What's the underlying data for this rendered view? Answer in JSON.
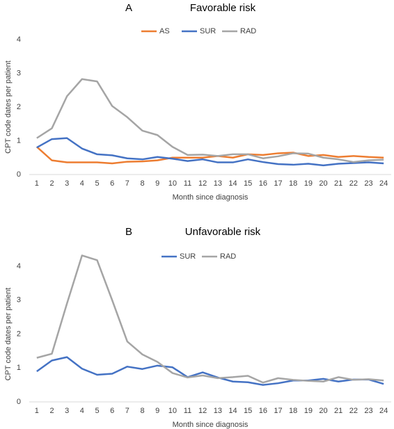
{
  "chart_data": [
    {
      "type": "line",
      "panel": "A",
      "title": "Favorable risk",
      "x_label": "Month since diagnosis",
      "y_label": "CPT code dates per patient",
      "categories": [
        "1",
        "2",
        "3",
        "4",
        "5",
        "6",
        "7",
        "8",
        "9",
        "10",
        "11",
        "12",
        "13",
        "14",
        "15",
        "16",
        "17",
        "18",
        "19",
        "20",
        "21",
        "22",
        "23",
        "24"
      ],
      "series": [
        {
          "name": "AS",
          "color": "#ed7d31",
          "values": [
            0.82,
            0.42,
            0.36,
            0.36,
            0.36,
            0.33,
            0.38,
            0.39,
            0.42,
            0.5,
            0.5,
            0.5,
            0.55,
            0.5,
            0.6,
            0.58,
            0.63,
            0.65,
            0.55,
            0.58,
            0.52,
            0.55,
            0.52,
            0.5
          ]
        },
        {
          "name": "SUR",
          "color": "#4472c4",
          "values": [
            0.8,
            1.05,
            1.08,
            0.77,
            0.6,
            0.57,
            0.48,
            0.45,
            0.52,
            0.47,
            0.4,
            0.45,
            0.36,
            0.36,
            0.45,
            0.37,
            0.31,
            0.29,
            0.32,
            0.27,
            0.32,
            0.34,
            0.36,
            0.33
          ]
        },
        {
          "name": "RAD",
          "color": "#a5a5a5",
          "values": [
            1.08,
            1.37,
            2.32,
            2.83,
            2.76,
            2.03,
            1.7,
            1.3,
            1.17,
            0.82,
            0.58,
            0.59,
            0.55,
            0.6,
            0.6,
            0.48,
            0.54,
            0.63,
            0.62,
            0.5,
            0.45,
            0.37,
            0.42,
            0.44
          ]
        }
      ],
      "ylim": [
        0,
        4
      ],
      "yticks": [
        0,
        1,
        2,
        3,
        4
      ],
      "legend": "top"
    },
    {
      "type": "line",
      "panel": "B",
      "title": "Unfavorable risk",
      "x_label": "Month since diagnosis",
      "y_label": "CPT code dates per patient",
      "categories": [
        "1",
        "2",
        "3",
        "4",
        "5",
        "6",
        "7",
        "8",
        "9",
        "10",
        "11",
        "12",
        "13",
        "14",
        "15",
        "16",
        "17",
        "18",
        "19",
        "20",
        "21",
        "22",
        "23",
        "24"
      ],
      "series": [
        {
          "name": "SUR",
          "color": "#4472c4",
          "values": [
            0.9,
            1.22,
            1.32,
            0.98,
            0.8,
            0.83,
            1.04,
            0.97,
            1.07,
            1.02,
            0.73,
            0.87,
            0.72,
            0.6,
            0.58,
            0.5,
            0.55,
            0.63,
            0.63,
            0.68,
            0.6,
            0.66,
            0.66,
            0.53
          ]
        },
        {
          "name": "RAD",
          "color": "#a5a5a5",
          "values": [
            1.3,
            1.42,
            2.9,
            4.32,
            4.18,
            3.0,
            1.78,
            1.4,
            1.18,
            0.85,
            0.72,
            0.78,
            0.7,
            0.73,
            0.77,
            0.57,
            0.7,
            0.65,
            0.62,
            0.6,
            0.73,
            0.65,
            0.67,
            0.63
          ]
        }
      ],
      "ylim": [
        0,
        4
      ],
      "yticks": [
        0,
        1,
        2,
        3,
        4
      ],
      "legend": "top"
    }
  ]
}
